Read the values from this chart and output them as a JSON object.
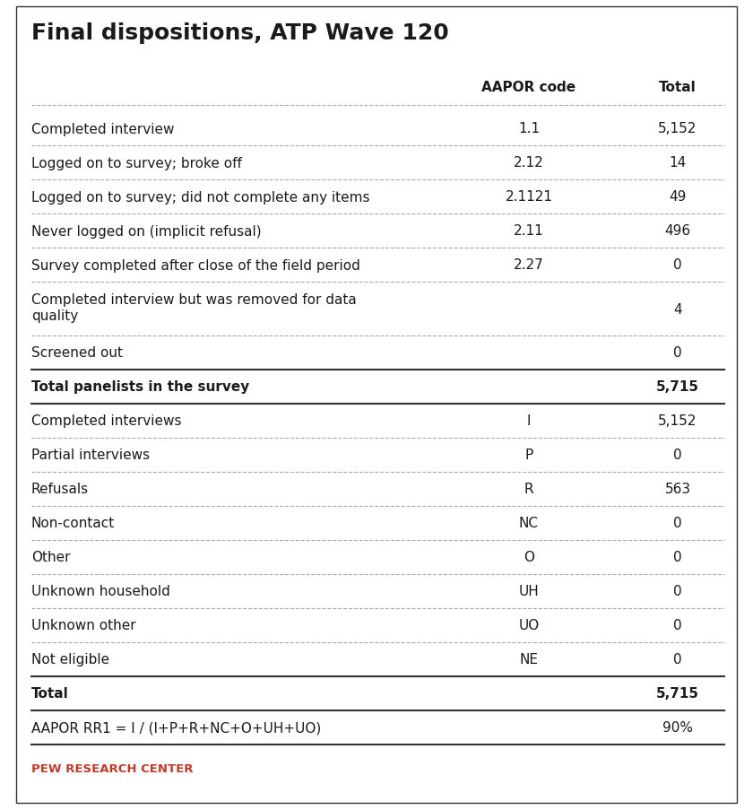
{
  "title": "Final dispositions, ATP Wave 120",
  "header_col2": "AAPOR code",
  "header_col3": "Total",
  "rows": [
    {
      "label": "Completed interview",
      "code": "1.1",
      "total": "5,152",
      "bold": false,
      "multiline": false
    },
    {
      "label": "Logged on to survey; broke off",
      "code": "2.12",
      "total": "14",
      "bold": false,
      "multiline": false
    },
    {
      "label": "Logged on to survey; did not complete any items",
      "code": "2.1121",
      "total": "49",
      "bold": false,
      "multiline": false
    },
    {
      "label": "Never logged on (implicit refusal)",
      "code": "2.11",
      "total": "496",
      "bold": false,
      "multiline": false
    },
    {
      "label": "Survey completed after close of the field period",
      "code": "2.27",
      "total": "0",
      "bold": false,
      "multiline": false
    },
    {
      "label": "Completed interview but was removed for data\nquality",
      "code": "",
      "total": "4",
      "bold": false,
      "multiline": true
    },
    {
      "label": "Screened out",
      "code": "",
      "total": "0",
      "bold": false,
      "multiline": false
    },
    {
      "label": "Total panelists in the survey",
      "code": "",
      "total": "5,715",
      "bold": true,
      "multiline": false,
      "sep_above": true,
      "sep_below": true
    },
    {
      "label": "Completed interviews",
      "code": "I",
      "total": "5,152",
      "bold": false,
      "multiline": false
    },
    {
      "label": "Partial interviews",
      "code": "P",
      "total": "0",
      "bold": false,
      "multiline": false
    },
    {
      "label": "Refusals",
      "code": "R",
      "total": "563",
      "bold": false,
      "multiline": false
    },
    {
      "label": "Non-contact",
      "code": "NC",
      "total": "0",
      "bold": false,
      "multiline": false
    },
    {
      "label": "Other",
      "code": "O",
      "total": "0",
      "bold": false,
      "multiline": false
    },
    {
      "label": "Unknown household",
      "code": "UH",
      "total": "0",
      "bold": false,
      "multiline": false
    },
    {
      "label": "Unknown other",
      "code": "UO",
      "total": "0",
      "bold": false,
      "multiline": false
    },
    {
      "label": "Not eligible",
      "code": "NE",
      "total": "0",
      "bold": false,
      "multiline": false
    },
    {
      "label": "Total",
      "code": "",
      "total": "5,715",
      "bold": true,
      "multiline": false,
      "sep_above": true,
      "sep_below": true
    },
    {
      "label": "AAPOR RR1 = I / (I+P+R+NC+O+UH+UO)",
      "code": "",
      "total": "90%",
      "bold": false,
      "multiline": false,
      "sep_below": true
    }
  ],
  "footer": "PEW RESEARCH CENTER",
  "bg_color": "#ffffff",
  "text_color": "#1a1a1a",
  "footer_color": "#c0392b",
  "border_color": "#333333",
  "dashed_color": "#aaaaaa",
  "title_fontsize": 18,
  "body_fontsize": 11,
  "header_fontsize": 11
}
